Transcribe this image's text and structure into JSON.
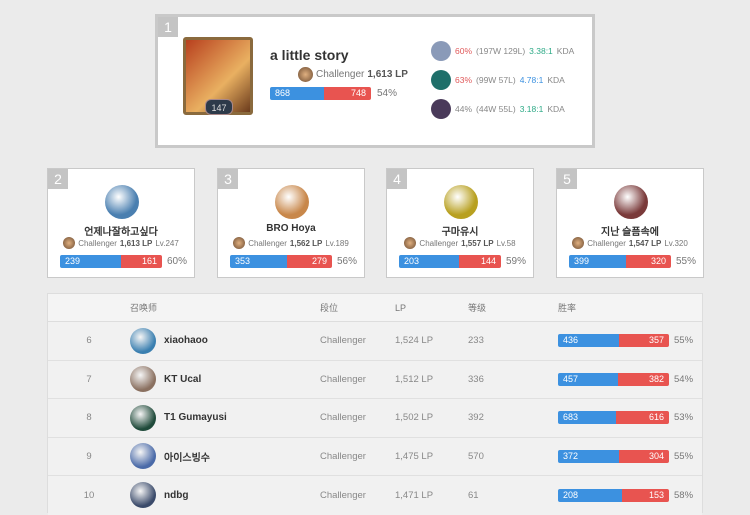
{
  "top": {
    "rank": "1",
    "name": "a little story",
    "level": "147",
    "tier": "Challenger",
    "lp": "1,613 LP",
    "wins": 868,
    "losses": 748,
    "winrate": "54%",
    "champions": [
      {
        "wr": "60%",
        "record": "(197W 129L)",
        "kda": "3.38:1",
        "kda_suffix": "KDA",
        "wr_color": "#e0595a",
        "kda_color": "#2eaa87",
        "avatar_color": "#8a9ab8"
      },
      {
        "wr": "63%",
        "record": "(99W 57L)",
        "kda": "4.78:1",
        "kda_suffix": "KDA",
        "wr_color": "#e0595a",
        "kda_color": "#3c91e0",
        "avatar_color": "#1f6f6a"
      },
      {
        "wr": "44%",
        "record": "(44W 55L)",
        "kda": "3.18:1",
        "kda_suffix": "KDA",
        "wr_color": "#888888",
        "kda_color": "#2eaa87",
        "avatar_color": "#4a3a5a"
      }
    ]
  },
  "cards": [
    {
      "rank": "2",
      "name": "언제나잘하고싶다",
      "tier": "Challenger",
      "lp": "1,613 LP",
      "level": "Lv.247",
      "wins": 239,
      "losses": 161,
      "winrate": "60%",
      "avatar_color": "#4a7fb0"
    },
    {
      "rank": "3",
      "name": "BRO Hoya",
      "tier": "Challenger",
      "lp": "1,562 LP",
      "level": "Lv.189",
      "wins": 353,
      "losses": 279,
      "winrate": "56%",
      "avatar_color": "#c8874a"
    },
    {
      "rank": "4",
      "name": "구마유시",
      "tier": "Challenger",
      "lp": "1,557 LP",
      "level": "Lv.58",
      "wins": 203,
      "losses": 144,
      "winrate": "59%",
      "avatar_color": "#b8a020"
    },
    {
      "rank": "5",
      "name": "지난 슬픔속에",
      "tier": "Challenger",
      "lp": "1,547 LP",
      "level": "Lv.320",
      "wins": 399,
      "losses": 320,
      "winrate": "55%",
      "avatar_color": "#7a3a3a"
    }
  ],
  "table": {
    "headers": [
      "",
      "召唤师",
      "段位",
      "LP",
      "等级",
      "胜率"
    ],
    "rows": [
      {
        "rank": "6",
        "name": "xiaohaoo",
        "tier": "Challenger",
        "lp": "1,524 LP",
        "level": "233",
        "wins": 436,
        "losses": 357,
        "winrate": "55%",
        "avatar_color": "#3a7fb0"
      },
      {
        "rank": "7",
        "name": "KT Ucal",
        "tier": "Challenger",
        "lp": "1,512 LP",
        "level": "336",
        "wins": 457,
        "losses": 382,
        "winrate": "54%",
        "avatar_color": "#8a7060"
      },
      {
        "rank": "8",
        "name": "T1 Gumayusi",
        "tier": "Challenger",
        "lp": "1,502 LP",
        "level": "392",
        "wins": 683,
        "losses": 616,
        "winrate": "53%",
        "avatar_color": "#1f4a3a"
      },
      {
        "rank": "9",
        "name": "아이스빙수",
        "tier": "Challenger",
        "lp": "1,475 LP",
        "level": "570",
        "wins": 372,
        "losses": 304,
        "winrate": "55%",
        "avatar_color": "#4a6aa8"
      },
      {
        "rank": "10",
        "name": "ndbg",
        "tier": "Challenger",
        "lp": "1,471 LP",
        "level": "61",
        "wins": 208,
        "losses": 153,
        "winrate": "58%",
        "avatar_color": "#3a4a6a"
      }
    ]
  }
}
